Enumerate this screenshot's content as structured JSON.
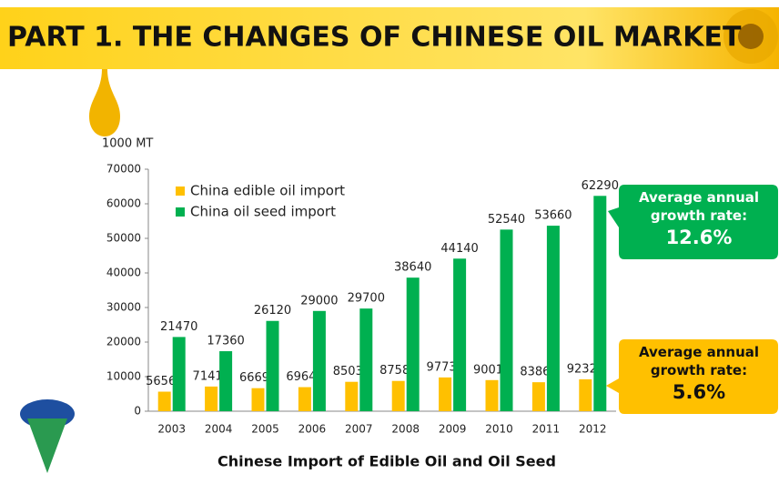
{
  "header": {
    "title": "PART 1. THE CHANGES OF CHINESE OIL MARKET"
  },
  "chart_data": {
    "type": "bar",
    "title": "Chinese Import of Edible Oil and Oil Seed",
    "y_label": "1000 MT",
    "categories": [
      "2003",
      "2004",
      "2005",
      "2006",
      "2007",
      "2008",
      "2009",
      "2010",
      "2011",
      "2012"
    ],
    "series": [
      {
        "name": "China edible oil import",
        "color": "#ffc000",
        "values": [
          5656,
          7141,
          6669,
          6964,
          8503,
          8758,
          9773,
          9001,
          8386,
          9232
        ]
      },
      {
        "name": "China oil seed import",
        "color": "#00b050",
        "values": [
          21470,
          17360,
          26120,
          29000,
          29700,
          38640,
          44140,
          52540,
          53660,
          62290
        ]
      }
    ],
    "ylim": [
      0,
      70000
    ],
    "yticks": [
      0,
      10000,
      20000,
      30000,
      40000,
      50000,
      60000,
      70000
    ],
    "legend": "upper left",
    "grid": false
  },
  "callouts": [
    {
      "text": "Average annual growth rate:",
      "value": "12.6%",
      "color": "#00b050"
    },
    {
      "text": "Average annual growth rate:",
      "value": "5.6%",
      "color": "#ffc000"
    }
  ]
}
